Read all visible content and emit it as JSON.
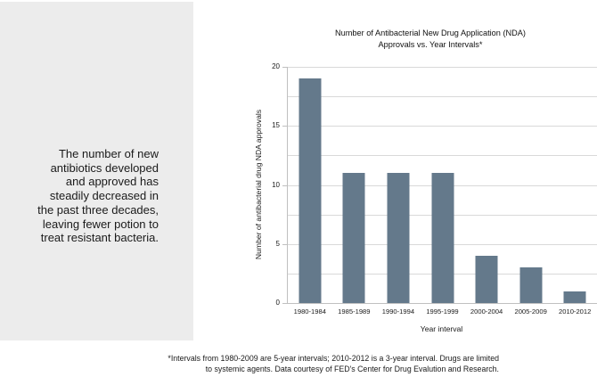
{
  "page": {
    "background": "#ffffff"
  },
  "sidebar": {
    "background": "#ececec",
    "text_color": "#1a1a1a",
    "text": "The number of new antibiotics developed and approved has steadily decreased in the past three decades, leaving fewer potion to treat resistant bacteria.",
    "text_lines": [
      "The number of new",
      "antibiotics developed",
      "and approved has",
      "steadily decreased in",
      "the past three decades,",
      "leaving fewer potion to",
      "treat resistant bacteria."
    ]
  },
  "chart_data": {
    "type": "bar",
    "title": "Number of Antibacterial New Drug Application (NDA) Approvals vs. Year Intervals*",
    "title_lines": [
      "Number of Antibacterial New Drug Application (NDA)",
      "Approvals vs. Year Intervals*"
    ],
    "categories": [
      "1980-1984",
      "1985-1989",
      "1990-1994",
      "1995-1999",
      "2000-2004",
      "2005-2009",
      "2010-2012"
    ],
    "values": [
      19,
      11,
      11,
      11,
      4,
      3,
      1
    ],
    "xlabel": "Year interval",
    "ylabel": "Number of antibacterial drug NDA approvals",
    "ylim": [
      0,
      20
    ],
    "ytick_values": [
      0,
      5,
      10,
      15,
      20
    ],
    "grid_step": 2.5,
    "grid": "horizontal",
    "legend": "none",
    "bar_color": "#64798b",
    "grid_color": "#d9d9d9",
    "axis_color": "#c0c0c0",
    "tick_label_color": "#1a1a1a"
  },
  "footnote": {
    "text": "*Intervals from 1980-2009 are 5-year intervals; 2010-2012 is a 3-year interval. Drugs are limited to systemic agents. Data courtesy of FED's Center for Drug Evalution and Research.",
    "lines": [
      "*Intervals from 1980-2009 are 5-year intervals; 2010-2012 is a 3-year interval. Drugs are limited",
      "to systemic agents. Data courtesy of FED's Center for Drug Evalution and Research."
    ]
  }
}
